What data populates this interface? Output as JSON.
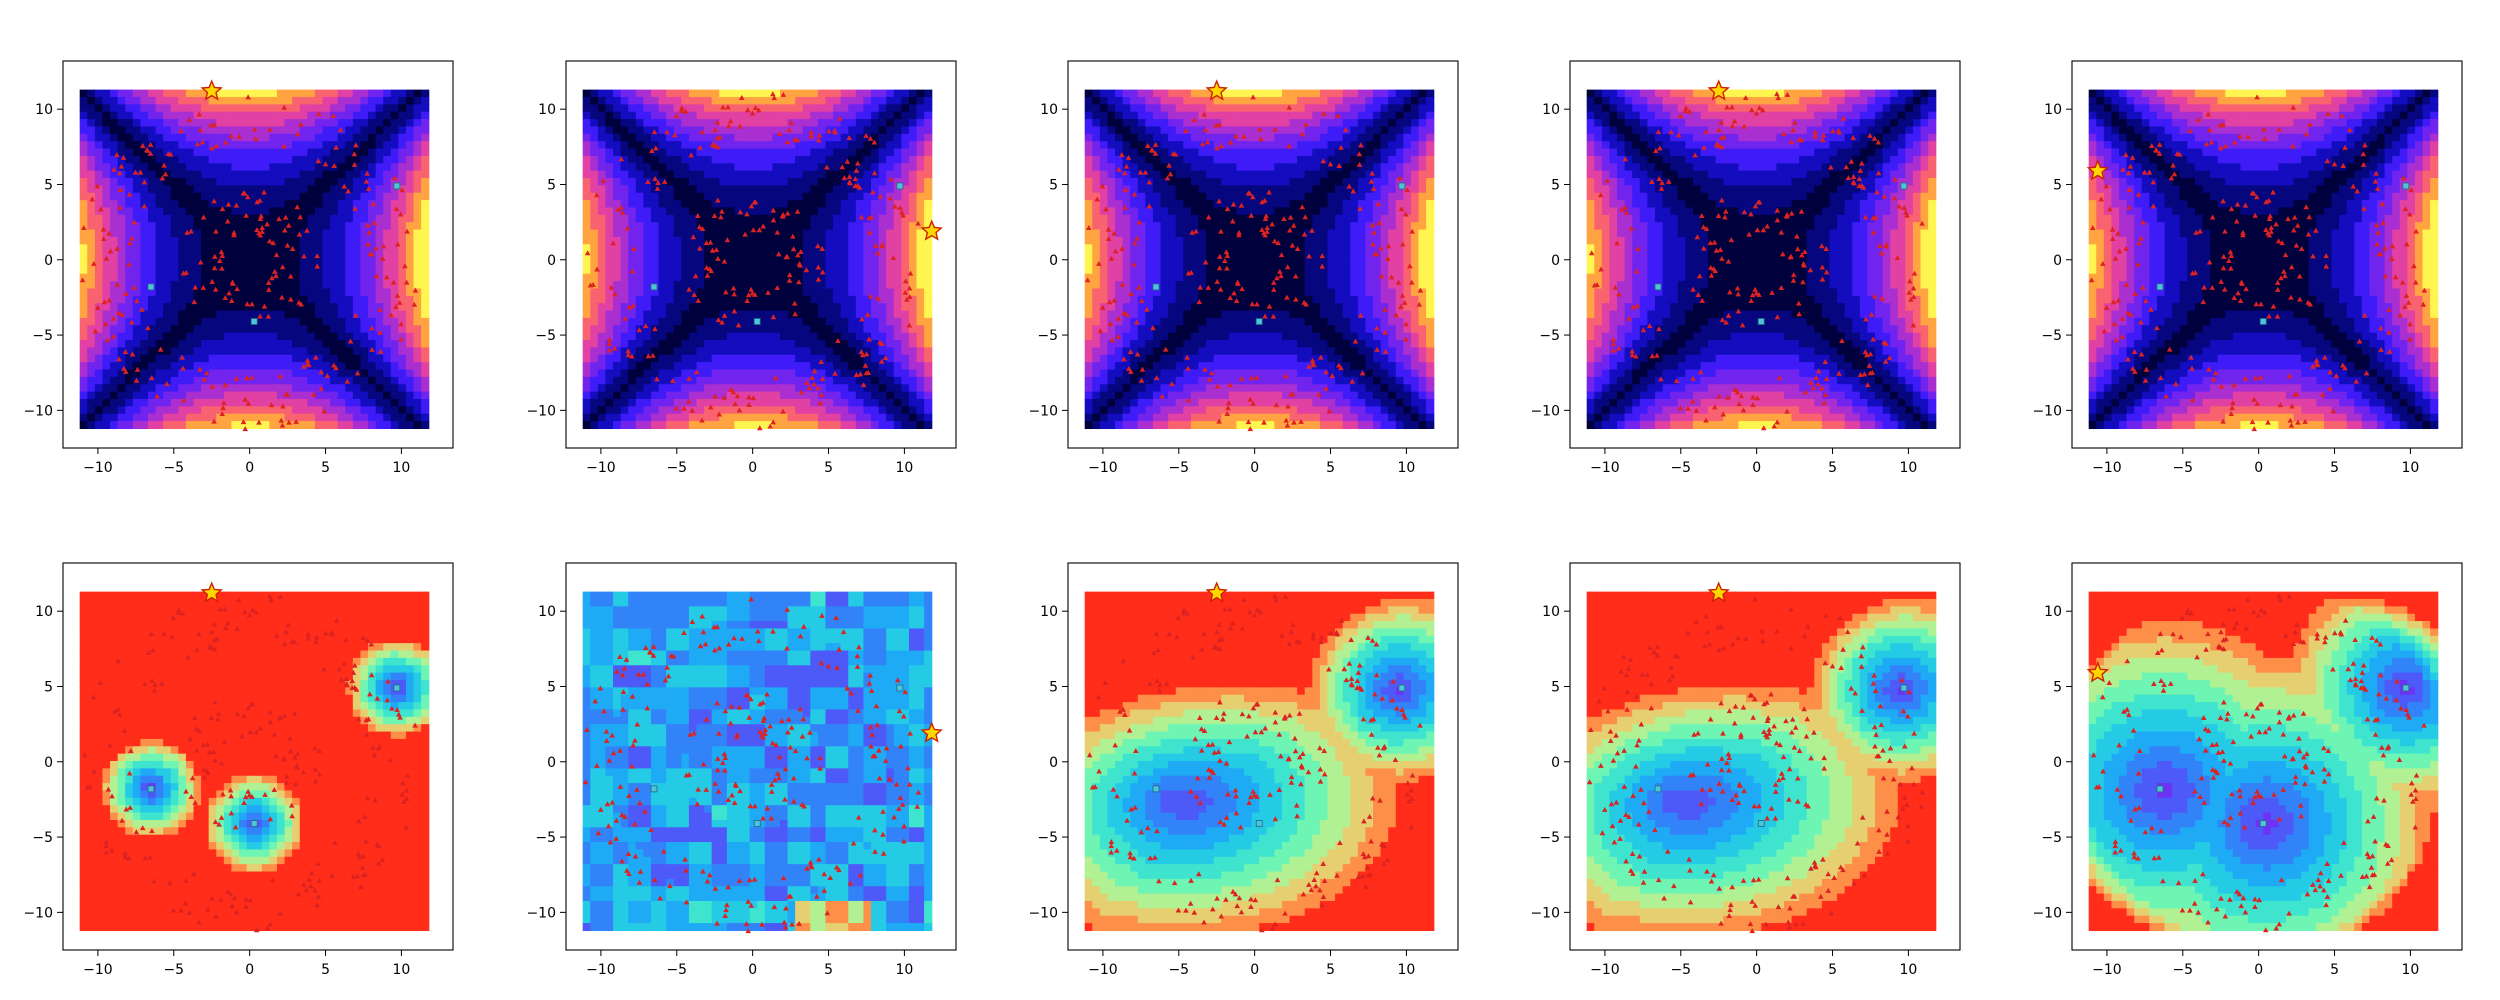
{
  "figure": {
    "rows": 2,
    "cols": 5,
    "tick_values": [
      -10,
      -5,
      0,
      5,
      10
    ],
    "tick_labels": [
      "−10",
      "−5",
      "0",
      "5",
      "10"
    ]
  },
  "chart_data": [
    {
      "type": "heatmap",
      "row": 0,
      "col": 0,
      "colormap": "gnuplot2",
      "field": "quartic-saddle",
      "xlim": [
        -12.3,
        13.4
      ],
      "ylim": [
        -12.5,
        13.2
      ],
      "star": {
        "x": -2.5,
        "y": 11.2
      },
      "candidates": [
        {
          "x": -6.5,
          "y": -1.8
        },
        {
          "x": 0.3,
          "y": -4.1
        },
        {
          "x": 9.7,
          "y": 4.9
        }
      ],
      "grid": false
    },
    {
      "type": "heatmap",
      "row": 0,
      "col": 1,
      "colormap": "gnuplot2",
      "field": "quartic-saddle",
      "xlim": [
        -12.3,
        13.4
      ],
      "ylim": [
        -12.5,
        13.2
      ],
      "star": {
        "x": 11.8,
        "y": 1.9
      },
      "candidates": [
        {
          "x": -6.5,
          "y": -1.8
        },
        {
          "x": 0.3,
          "y": -4.1
        },
        {
          "x": 9.7,
          "y": 4.9
        }
      ],
      "grid": false
    },
    {
      "type": "heatmap",
      "row": 0,
      "col": 2,
      "colormap": "gnuplot2",
      "field": "quartic-saddle",
      "xlim": [
        -12.3,
        13.4
      ],
      "ylim": [
        -12.5,
        13.2
      ],
      "star": {
        "x": -2.5,
        "y": 11.2
      },
      "candidates": [
        {
          "x": -6.5,
          "y": -1.8
        },
        {
          "x": 0.3,
          "y": -4.1
        },
        {
          "x": 9.7,
          "y": 4.9
        }
      ],
      "grid": false
    },
    {
      "type": "heatmap",
      "row": 0,
      "col": 3,
      "colormap": "gnuplot2",
      "field": "quartic-saddle",
      "xlim": [
        -12.3,
        13.4
      ],
      "ylim": [
        -12.5,
        13.2
      ],
      "star": {
        "x": -2.5,
        "y": 11.2
      },
      "candidates": [
        {
          "x": -6.5,
          "y": -1.8
        },
        {
          "x": 0.3,
          "y": -4.1
        },
        {
          "x": 9.7,
          "y": 4.9
        }
      ],
      "grid": false
    },
    {
      "type": "heatmap",
      "row": 0,
      "col": 4,
      "colormap": "gnuplot2",
      "field": "quartic-saddle",
      "xlim": [
        -12.3,
        13.4
      ],
      "ylim": [
        -12.5,
        13.2
      ],
      "star": {
        "x": -10.6,
        "y": 5.9
      },
      "candidates": [
        {
          "x": -6.5,
          "y": -1.8
        },
        {
          "x": 0.3,
          "y": -4.1
        },
        {
          "x": 9.7,
          "y": 4.9
        }
      ],
      "grid": false
    },
    {
      "type": "heatmap",
      "row": 1,
      "col": 0,
      "colormap": "rainbow",
      "field": "rbf-narrow",
      "xlim": [
        -12.3,
        13.4
      ],
      "ylim": [
        -12.5,
        13.2
      ],
      "star": {
        "x": -2.5,
        "y": 11.2
      },
      "candidates": [
        {
          "x": -6.5,
          "y": -1.8
        },
        {
          "x": 0.3,
          "y": -4.1
        },
        {
          "x": 9.7,
          "y": 4.9
        }
      ],
      "grid": false
    },
    {
      "type": "heatmap",
      "row": 1,
      "col": 1,
      "colormap": "rainbow",
      "field": "noisy",
      "xlim": [
        -12.3,
        13.4
      ],
      "ylim": [
        -12.5,
        13.2
      ],
      "star": {
        "x": 11.8,
        "y": 1.9
      },
      "candidates": [
        {
          "x": -6.5,
          "y": -1.8
        },
        {
          "x": 0.3,
          "y": -4.1
        },
        {
          "x": 9.7,
          "y": 4.9
        }
      ],
      "grid": false
    },
    {
      "type": "heatmap",
      "row": 1,
      "col": 2,
      "colormap": "rainbow",
      "field": "rbf-smooth",
      "xlim": [
        -12.3,
        13.4
      ],
      "ylim": [
        -12.5,
        13.2
      ],
      "star": {
        "x": -2.5,
        "y": 11.2
      },
      "candidates": [
        {
          "x": -6.5,
          "y": -1.8
        },
        {
          "x": 0.3,
          "y": -4.1
        },
        {
          "x": 9.7,
          "y": 4.9
        }
      ],
      "grid": false
    },
    {
      "type": "heatmap",
      "row": 1,
      "col": 3,
      "colormap": "rainbow",
      "field": "rbf-smooth",
      "xlim": [
        -12.3,
        13.4
      ],
      "ylim": [
        -12.5,
        13.2
      ],
      "star": {
        "x": -2.5,
        "y": 11.2
      },
      "candidates": [
        {
          "x": -6.5,
          "y": -1.8
        },
        {
          "x": 0.3,
          "y": -4.1
        },
        {
          "x": 9.7,
          "y": 4.9
        }
      ],
      "grid": false
    },
    {
      "type": "heatmap",
      "row": 1,
      "col": 4,
      "colormap": "rainbow",
      "field": "rbf-ring",
      "xlim": [
        -12.3,
        13.4
      ],
      "ylim": [
        -12.5,
        13.2
      ],
      "star": {
        "x": -10.6,
        "y": 5.9
      },
      "candidates": [
        {
          "x": -6.5,
          "y": -1.8
        },
        {
          "x": 0.3,
          "y": -4.1
        },
        {
          "x": 9.7,
          "y": 4.9
        }
      ],
      "grid": false
    }
  ],
  "colors": {
    "sample_marker": "#dd2222",
    "star_fill": "#ffd700",
    "star_stroke": "#cc2200",
    "candidate_marker": "#4fc3d9",
    "axis": "#000000"
  }
}
